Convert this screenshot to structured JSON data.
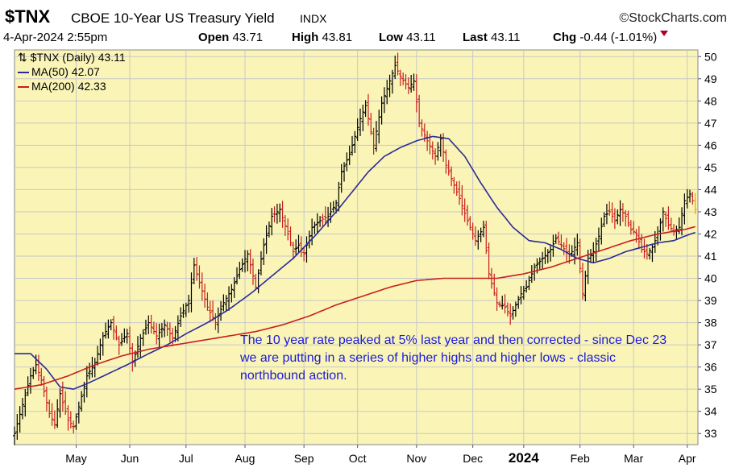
{
  "header": {
    "ticker": "$TNX",
    "name": "CBOE 10-Year US Treasury Yield",
    "exchange": "INDX",
    "brand": "©StockCharts.com",
    "date": "4-Apr-2024 2:55pm",
    "open_label": "Open",
    "open_value": "43.71",
    "high_label": "High",
    "high_value": "43.81",
    "low_label": "Low",
    "low_value": "43.11",
    "last_label": "Last",
    "last_value": "43.11",
    "chg_label": "Chg",
    "chg_value": "-0.44 (-1.01%)"
  },
  "legend": {
    "price": "$TNX (Daily) 43.11",
    "ma50": "MA(50) 42.07",
    "ma200": "MA(200) 42.33"
  },
  "annotation": "The 10 year rate peaked at 5% last year and then corrected - since Dec 23 we are putting in a series of higher highs and higher lows - classic northbound action.",
  "colors": {
    "plot_bg": "#faf5b6",
    "grid": "#c8c8c8",
    "ma50": "#2a2a9a",
    "ma200": "#c81e1e",
    "price": "#000000",
    "annotation": "#1a1adc"
  },
  "chart_data": {
    "type": "line",
    "ylim": [
      32.5,
      50.3
    ],
    "y_ticks": [
      33,
      34,
      35,
      36,
      37,
      38,
      39,
      40,
      41,
      42,
      43,
      44,
      45,
      46,
      47,
      48,
      49,
      50
    ],
    "x_ticks": [
      {
        "label": "May",
        "at": 23
      },
      {
        "label": "Jun",
        "at": 43
      },
      {
        "label": "Jul",
        "at": 64
      },
      {
        "label": "Aug",
        "at": 86
      },
      {
        "label": "Sep",
        "at": 108
      },
      {
        "label": "Oct",
        "at": 128
      },
      {
        "label": "Nov",
        "at": 150
      },
      {
        "label": "Dec",
        "at": 171
      },
      {
        "label": "2024",
        "at": 190,
        "bold": true
      },
      {
        "label": "Feb",
        "at": 211
      },
      {
        "label": "Mar",
        "at": 231
      },
      {
        "label": "Apr",
        "at": 251
      }
    ],
    "x_range": [
      0,
      255
    ],
    "series": [
      {
        "name": "$TNX (Daily)",
        "kind": "ohlc",
        "close_keypoints": [
          [
            0,
            33.0
          ],
          [
            3,
            34.3
          ],
          [
            6,
            35.6
          ],
          [
            8,
            36.1
          ],
          [
            10,
            35.4
          ],
          [
            13,
            33.9
          ],
          [
            15,
            33.4
          ],
          [
            17,
            34.8
          ],
          [
            20,
            33.6
          ],
          [
            22,
            33.3
          ],
          [
            24,
            34.2
          ],
          [
            27,
            35.6
          ],
          [
            30,
            36.2
          ],
          [
            33,
            37.4
          ],
          [
            36,
            38.0
          ],
          [
            39,
            37.0
          ],
          [
            42,
            37.5
          ],
          [
            44,
            36.2
          ],
          [
            47,
            37.3
          ],
          [
            50,
            38.0
          ],
          [
            53,
            37.4
          ],
          [
            56,
            37.9
          ],
          [
            59,
            37.3
          ],
          [
            62,
            38.3
          ],
          [
            65,
            39.0
          ],
          [
            67,
            40.6
          ],
          [
            69,
            39.8
          ],
          [
            72,
            38.7
          ],
          [
            75,
            38.0
          ],
          [
            78,
            38.9
          ],
          [
            81,
            39.5
          ],
          [
            84,
            40.4
          ],
          [
            87,
            41.1
          ],
          [
            90,
            39.6
          ],
          [
            93,
            41.5
          ],
          [
            96,
            42.8
          ],
          [
            99,
            43.1
          ],
          [
            102,
            42.0
          ],
          [
            104,
            41.2
          ],
          [
            106,
            41.5
          ],
          [
            108,
            41.1
          ],
          [
            111,
            42.3
          ],
          [
            114,
            42.6
          ],
          [
            117,
            42.8
          ],
          [
            120,
            43.4
          ],
          [
            122,
            44.8
          ],
          [
            125,
            45.6
          ],
          [
            127,
            46.4
          ],
          [
            129,
            47.2
          ],
          [
            131,
            47.8
          ],
          [
            134,
            46.0
          ],
          [
            137,
            47.9
          ],
          [
            140,
            48.9
          ],
          [
            142,
            49.6
          ],
          [
            144,
            49.1
          ],
          [
            147,
            48.6
          ],
          [
            149,
            48.9
          ],
          [
            151,
            47.0
          ],
          [
            154,
            46.2
          ],
          [
            157,
            45.5
          ],
          [
            159,
            46.3
          ],
          [
            161,
            45.1
          ],
          [
            163,
            44.5
          ],
          [
            166,
            43.6
          ],
          [
            169,
            42.6
          ],
          [
            172,
            41.7
          ],
          [
            175,
            42.3
          ],
          [
            177,
            40.2
          ],
          [
            180,
            38.9
          ],
          [
            183,
            38.7
          ],
          [
            185,
            38.3
          ],
          [
            187,
            38.8
          ],
          [
            189,
            39.3
          ],
          [
            191,
            39.6
          ],
          [
            194,
            40.5
          ],
          [
            197,
            40.9
          ],
          [
            200,
            41.3
          ],
          [
            202,
            41.8
          ],
          [
            204,
            41.5
          ],
          [
            207,
            41.0
          ],
          [
            210,
            41.6
          ],
          [
            212,
            39.3
          ],
          [
            214,
            40.9
          ],
          [
            216,
            41.2
          ],
          [
            218,
            41.9
          ],
          [
            220,
            42.8
          ],
          [
            222,
            43.0
          ],
          [
            224,
            42.6
          ],
          [
            226,
            43.1
          ],
          [
            228,
            42.8
          ],
          [
            230,
            42.2
          ],
          [
            232,
            42.0
          ],
          [
            234,
            41.3
          ],
          [
            236,
            41.1
          ],
          [
            238,
            41.4
          ],
          [
            240,
            42.0
          ],
          [
            242,
            43.0
          ],
          [
            244,
            42.4
          ],
          [
            246,
            42.1
          ],
          [
            248,
            42.3
          ],
          [
            250,
            43.5
          ],
          [
            252,
            43.8
          ],
          [
            253,
            43.5
          ],
          [
            254,
            43.11
          ]
        ]
      },
      {
        "name": "MA(50)",
        "keypoints": [
          [
            0,
            36.6
          ],
          [
            6,
            36.6
          ],
          [
            12,
            35.9
          ],
          [
            17,
            35.1
          ],
          [
            22,
            35.0
          ],
          [
            28,
            35.3
          ],
          [
            35,
            35.7
          ],
          [
            42,
            36.1
          ],
          [
            50,
            36.6
          ],
          [
            57,
            37.0
          ],
          [
            64,
            37.5
          ],
          [
            72,
            38.0
          ],
          [
            80,
            38.6
          ],
          [
            88,
            39.3
          ],
          [
            96,
            40.1
          ],
          [
            104,
            40.9
          ],
          [
            112,
            41.9
          ],
          [
            120,
            43.0
          ],
          [
            126,
            43.9
          ],
          [
            132,
            44.8
          ],
          [
            138,
            45.5
          ],
          [
            144,
            45.9
          ],
          [
            150,
            46.2
          ],
          [
            156,
            46.4
          ],
          [
            162,
            46.3
          ],
          [
            168,
            45.5
          ],
          [
            174,
            44.3
          ],
          [
            180,
            43.2
          ],
          [
            186,
            42.3
          ],
          [
            192,
            41.7
          ],
          [
            198,
            41.6
          ],
          [
            204,
            41.3
          ],
          [
            210,
            40.9
          ],
          [
            216,
            40.7
          ],
          [
            222,
            40.9
          ],
          [
            228,
            41.2
          ],
          [
            234,
            41.4
          ],
          [
            240,
            41.6
          ],
          [
            246,
            41.7
          ],
          [
            250,
            41.9
          ],
          [
            254,
            42.07
          ]
        ]
      },
      {
        "name": "MA(200)",
        "keypoints": [
          [
            0,
            35.0
          ],
          [
            10,
            35.2
          ],
          [
            20,
            35.6
          ],
          [
            30,
            36.1
          ],
          [
            40,
            36.5
          ],
          [
            50,
            36.8
          ],
          [
            60,
            37.0
          ],
          [
            70,
            37.2
          ],
          [
            80,
            37.4
          ],
          [
            90,
            37.6
          ],
          [
            100,
            37.9
          ],
          [
            110,
            38.3
          ],
          [
            120,
            38.8
          ],
          [
            130,
            39.2
          ],
          [
            140,
            39.6
          ],
          [
            150,
            39.9
          ],
          [
            160,
            40.0
          ],
          [
            170,
            40.0
          ],
          [
            180,
            40.0
          ],
          [
            190,
            40.2
          ],
          [
            200,
            40.5
          ],
          [
            210,
            40.9
          ],
          [
            220,
            41.3
          ],
          [
            230,
            41.7
          ],
          [
            240,
            42.0
          ],
          [
            250,
            42.2
          ],
          [
            254,
            42.33
          ]
        ]
      }
    ]
  }
}
